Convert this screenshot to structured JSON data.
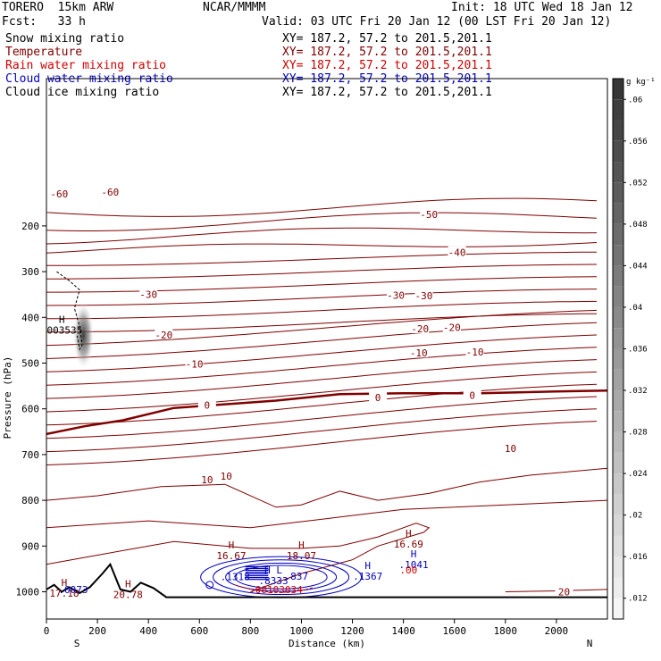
{
  "header": {
    "model": "TORERO  15km ARW",
    "org": "NCAR/MMMM",
    "init": "Init: 18 UTC Wed 18 Jan 12",
    "fcst": "Fcst:   33 h",
    "valid": "Valid: 03 UTC Fri 20 Jan 12 (00 LST Fri 20 Jan 12)"
  },
  "legend": [
    {
      "name": "Snow mixing ratio",
      "xy": "XY= 187.2, 57.2 to 201.5,201.1",
      "color": "#000000"
    },
    {
      "name": "Temperature",
      "xy": "XY= 187.2, 57.2 to 201.5,201.1",
      "color": "#800000"
    },
    {
      "name": "Rain water mixing ratio",
      "xy": "XY= 187.2, 57.2 to 201.5,201.1",
      "color": "#d00000"
    },
    {
      "name": "Cloud water mixing ratio",
      "xy": "XY= 187.2, 57.2 to 201.5,201.1",
      "color": "#0000c0"
    },
    {
      "name": "Cloud ice mixing ratio",
      "xy": "XY= 187.2, 57.2 to 201.5,201.1",
      "color": "#000000"
    }
  ],
  "chart_data": {
    "type": "cross-section",
    "xlabel": "Distance (km)",
    "ylabel": "Pressure (hPa)",
    "xlim": [
      0,
      2200
    ],
    "ylim": [
      1050,
      100
    ],
    "x_ticks": [
      "0",
      "200",
      "400",
      "600",
      "800",
      "1000",
      "1200",
      "1400",
      "1600",
      "1800",
      "2000"
    ],
    "x_tick_values": [
      0,
      200,
      400,
      600,
      800,
      1000,
      1200,
      1400,
      1600,
      1800,
      2000
    ],
    "y_ticks": [
      "200",
      "300",
      "400",
      "500",
      "600",
      "700",
      "800",
      "900",
      "1000"
    ],
    "y_tick_values": [
      200,
      300,
      400,
      500,
      600,
      700,
      800,
      900,
      1000
    ],
    "end_labels": {
      "left": "S",
      "right": "N"
    },
    "colorbar": {
      "unit": "g kg⁻¹",
      "ticks": [
        ".06",
        ".056",
        ".052",
        ".048",
        ".044",
        ".04",
        ".036",
        ".032",
        ".028",
        ".024",
        ".02",
        ".016",
        ".012"
      ],
      "tick_values": [
        0.06,
        0.056,
        0.052,
        0.048,
        0.044,
        0.04,
        0.036,
        0.032,
        0.028,
        0.024,
        0.02,
        0.016,
        0.012
      ],
      "range": [
        0.01,
        0.062
      ]
    },
    "temperature_labels": [
      {
        "text": "-60",
        "x": 250,
        "p": 126
      },
      {
        "text": "-60",
        "x": 50,
        "p": 130
      },
      {
        "text": "-50",
        "x": 1500,
        "p": 175
      },
      {
        "text": "-40",
        "x": 1610,
        "p": 258
      },
      {
        "text": "-30",
        "x": 400,
        "p": 350
      },
      {
        "text": "-30",
        "x": 1370,
        "p": 352
      },
      {
        "text": "-30",
        "x": 1480,
        "p": 353
      },
      {
        "text": "-20",
        "x": 460,
        "p": 438
      },
      {
        "text": "-20",
        "x": 1465,
        "p": 425
      },
      {
        "text": "-20",
        "x": 1590,
        "p": 422
      },
      {
        "text": "-10",
        "x": 580,
        "p": 502
      },
      {
        "text": "-10",
        "x": 1460,
        "p": 478
      },
      {
        "text": "-10",
        "x": 1680,
        "p": 476
      },
      {
        "text": "0",
        "x": 630,
        "p": 592
      },
      {
        "text": "0",
        "x": 1300,
        "p": 575
      },
      {
        "text": "0",
        "x": 1670,
        "p": 570
      },
      {
        "text": "10",
        "x": 1820,
        "p": 687
      },
      {
        "text": "10",
        "x": 630,
        "p": 755
      },
      {
        "text": "10",
        "x": 705,
        "p": 747
      },
      {
        "text": "20",
        "x": 2030,
        "p": 1000
      }
    ],
    "extrema": [
      {
        "text": "H",
        "value": ".003535",
        "x": 60,
        "p": 412,
        "color": "#000000"
      },
      {
        "text": "H",
        "value": "17.18",
        "x": 70,
        "p": 987,
        "color": "#800000"
      },
      {
        "text": ".0073",
        "value": "",
        "x": 105,
        "p": 1003,
        "color": "#0000c0"
      },
      {
        "text": "H",
        "value": "20.78",
        "x": 320,
        "p": 990,
        "color": "#800000"
      },
      {
        "text": "H",
        "value": "16.67",
        "x": 725,
        "p": 905,
        "color": "#800000"
      },
      {
        "text": "H",
        "value": "18.07",
        "x": 1000,
        "p": 905,
        "color": "#800000"
      },
      {
        "text": "H",
        "value": ".1367",
        "x": 1260,
        "p": 950,
        "color": "#0000c0"
      },
      {
        "text": "H",
        "value": "16.69",
        "x": 1420,
        "p": 880,
        "color": "#800000"
      },
      {
        "text": "H",
        "value": ".1041",
        "x": 1440,
        "p": 925,
        "color": "#0000c0"
      },
      {
        "text": ".00",
        "value": "",
        "x": 1420,
        "p": 960,
        "color": "#d00000"
      },
      {
        "text": "H L",
        "value": ".8333",
        "x": 890,
        "p": 960,
        "color": "#0000c0"
      },
      {
        "text": ".837",
        "value": "",
        "x": 980,
        "p": 974,
        "color": "#0000c0"
      },
      {
        "text": ".1318",
        "value": "",
        "x": 740,
        "p": 975,
        "color": "#0000c0"
      },
      {
        "text": ".00103034",
        "value": "",
        "x": 900,
        "p": 1003,
        "color": "#d00000"
      }
    ]
  }
}
